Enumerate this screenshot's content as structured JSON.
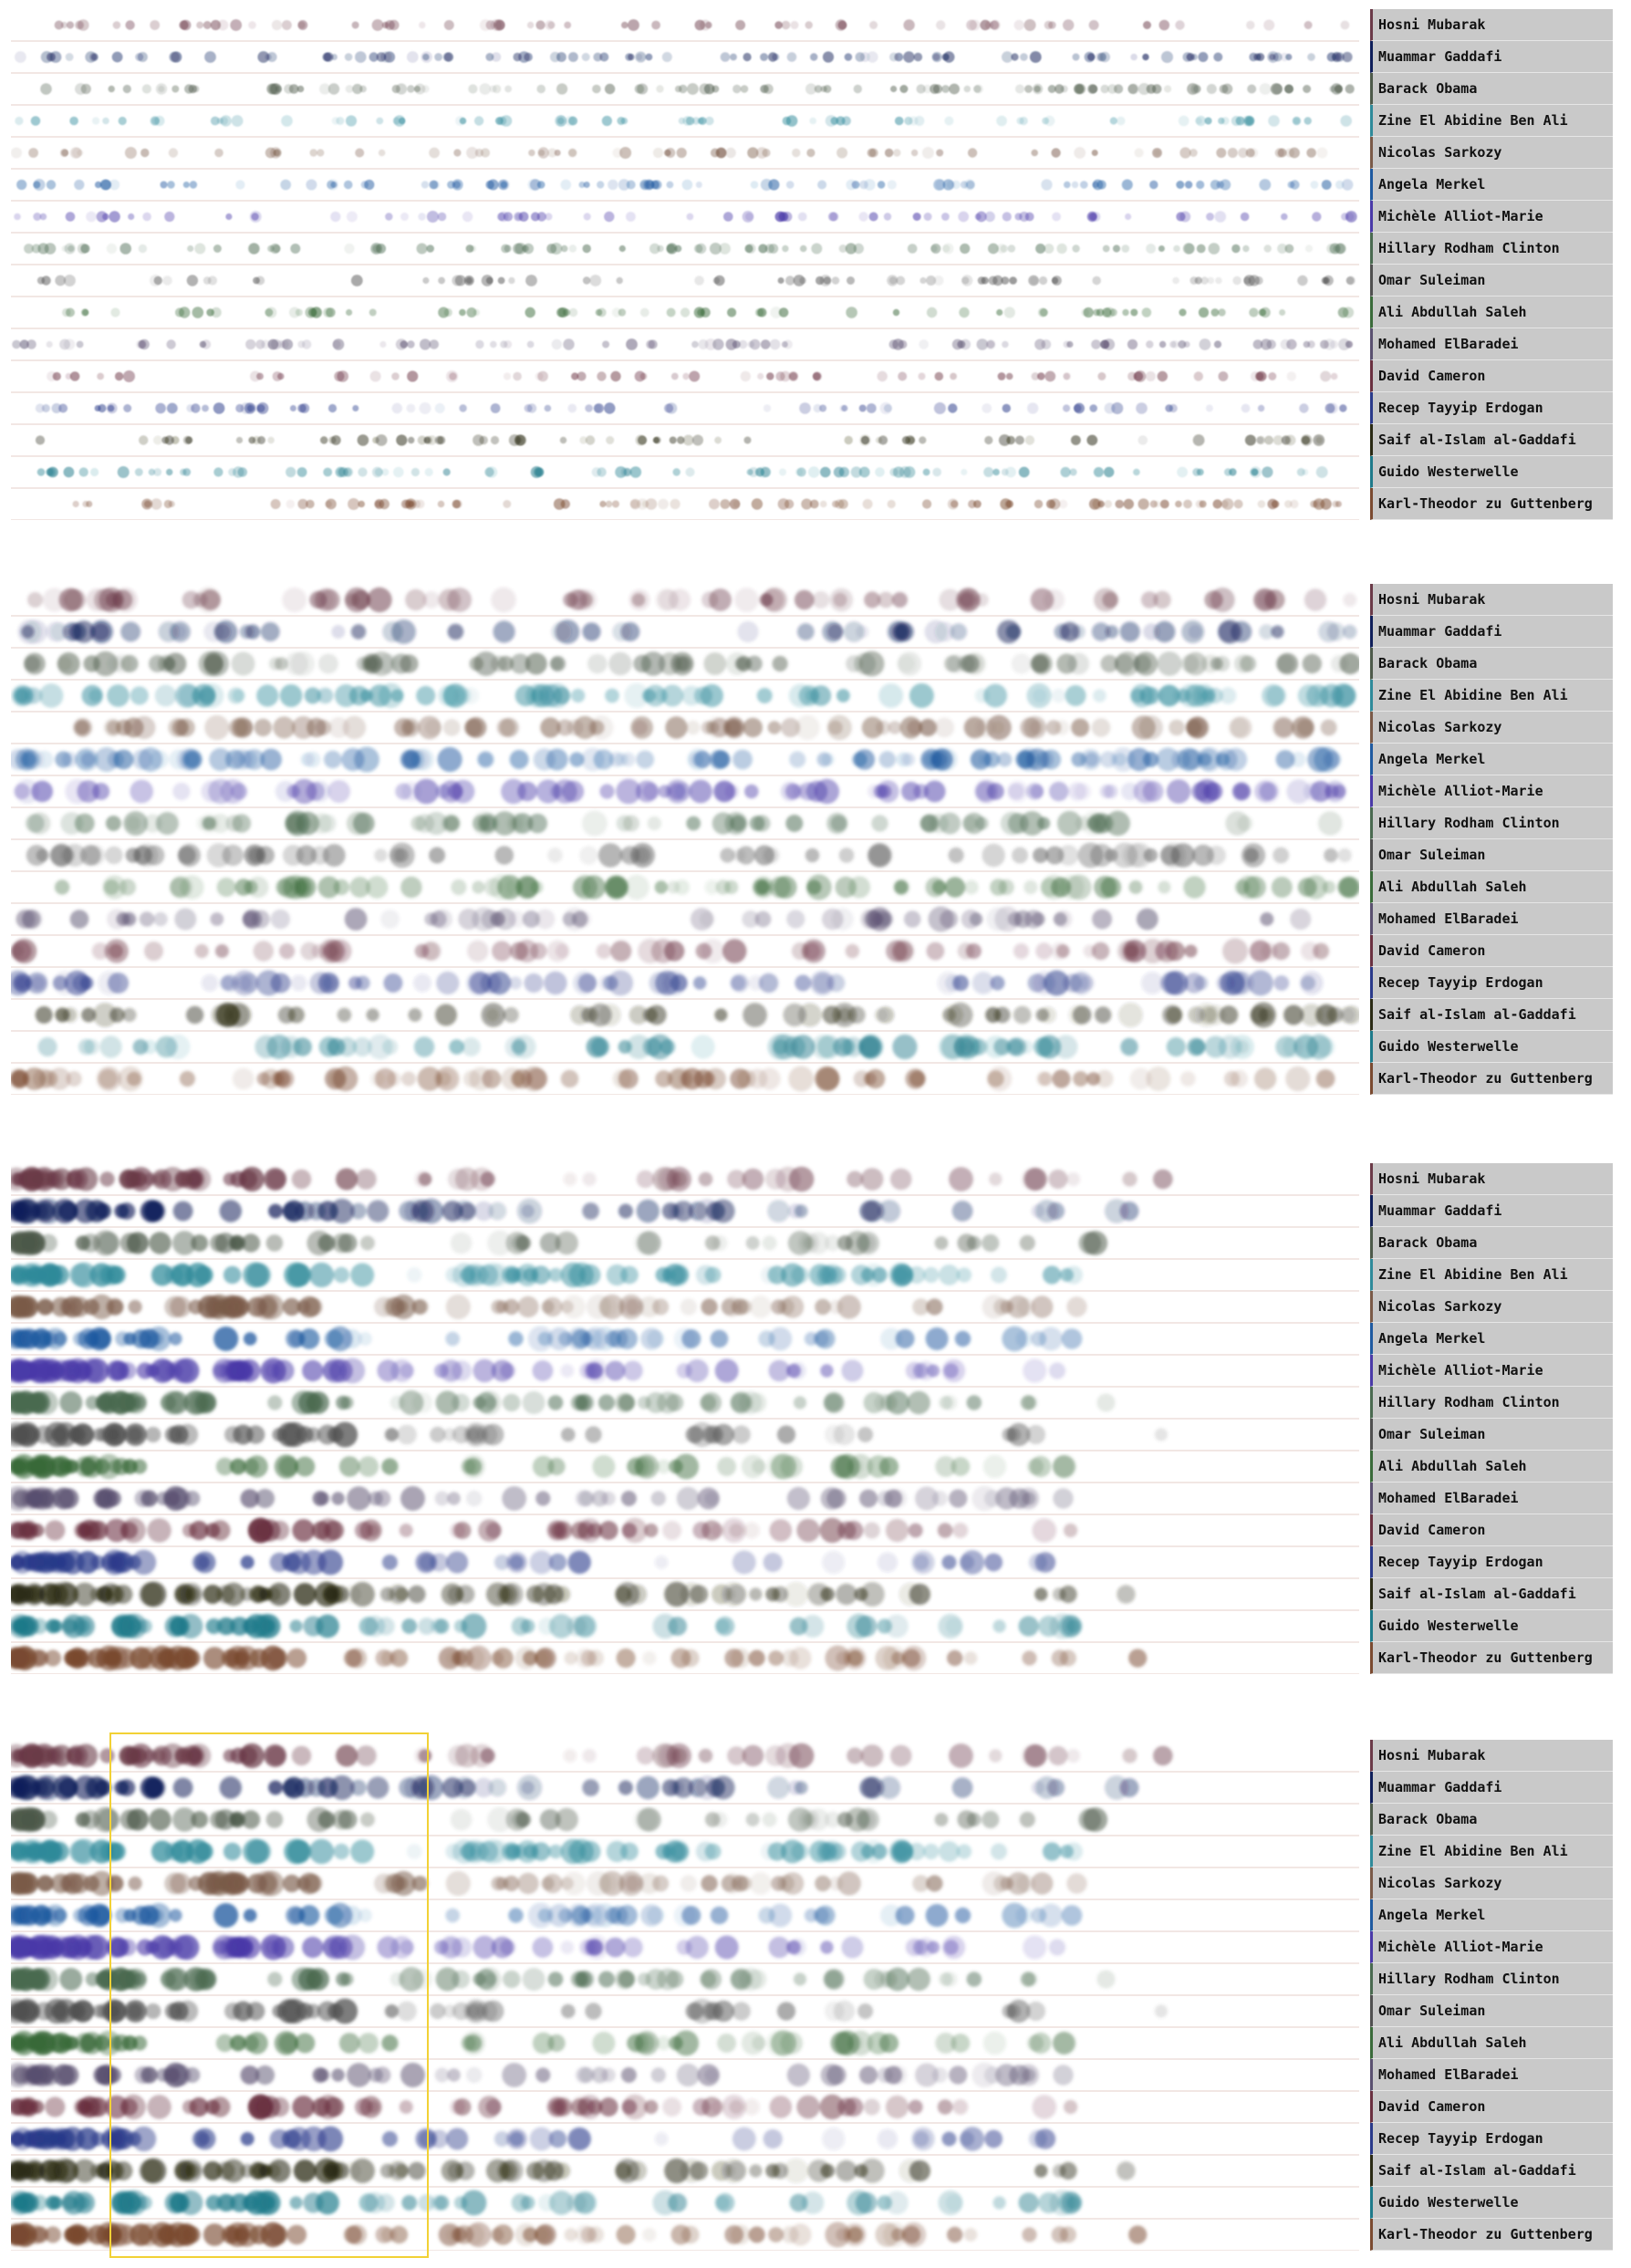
{
  "chart_data": {
    "type": "scatter",
    "title": "",
    "people": [
      {
        "name": "Hosni Mubarak",
        "color": "#6b3a48"
      },
      {
        "name": "Muammar Gaddafi",
        "color": "#0f1f5a"
      },
      {
        "name": "Barack Obama",
        "color": "#4d5a4a"
      },
      {
        "name": "Zine El Abidine Ben Ali",
        "color": "#2f8a9a"
      },
      {
        "name": "Nicolas Sarkozy",
        "color": "#7a5a48"
      },
      {
        "name": "Angela Merkel",
        "color": "#1f5aa0"
      },
      {
        "name": "Michèle Alliot-Marie",
        "color": "#4a3aa8"
      },
      {
        "name": "Hillary Rodham Clinton",
        "color": "#4a6a50"
      },
      {
        "name": "Omar Suleiman",
        "color": "#505050"
      },
      {
        "name": "Ali Abdullah Saleh",
        "color": "#3a6a3a"
      },
      {
        "name": "Mohamed ElBaradei",
        "color": "#5a5070"
      },
      {
        "name": "David Cameron",
        "color": "#6a3040"
      },
      {
        "name": "Recep Tayyip Erdogan",
        "color": "#2a3a8a"
      },
      {
        "name": "Saif al-Islam al-Gaddafi",
        "color": "#2a2a14"
      },
      {
        "name": "Guido Westerwelle",
        "color": "#1f7a8a"
      },
      {
        "name": "Karl-Theodor zu Guttenberg",
        "color": "#7a4a30"
      }
    ],
    "panels": [
      {
        "id": "panel-1",
        "style": "small",
        "seed": 11,
        "highlight": null
      },
      {
        "id": "panel-2",
        "style": "large",
        "seed": 23,
        "highlight": null
      },
      {
        "id": "panel-3",
        "style": "sorted",
        "seed": 37,
        "highlight": null
      },
      {
        "id": "panel-4",
        "style": "sorted",
        "seed": 37,
        "highlight": {
          "from": 0.073,
          "to": 0.31
        }
      }
    ]
  }
}
